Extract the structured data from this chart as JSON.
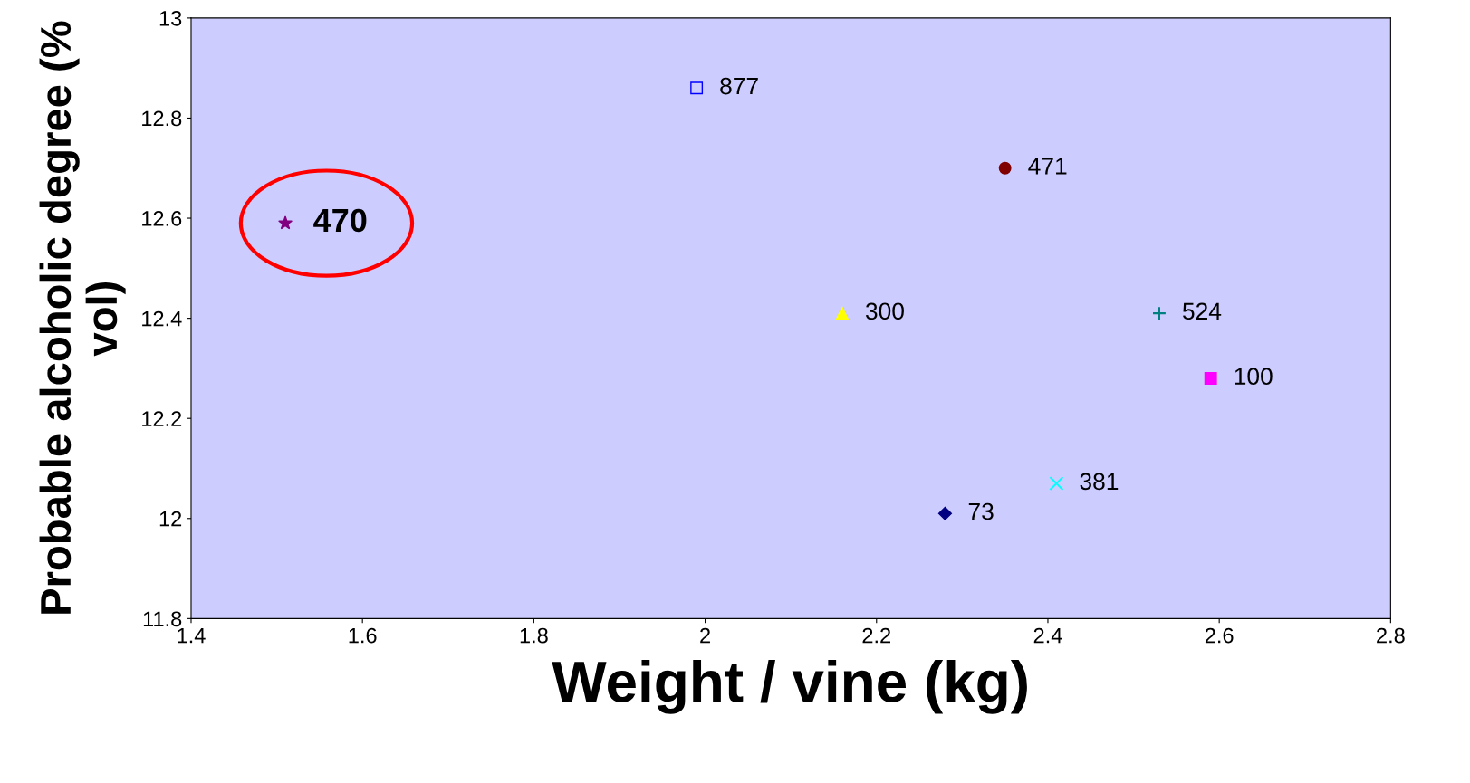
{
  "chart_data": {
    "type": "scatter",
    "xlabel": "Weight / vine (kg)",
    "ylabel": "Probable alcoholic degree (% vol)",
    "xlim": [
      1.4,
      2.8
    ],
    "xticks": [
      1.4,
      1.6,
      1.8,
      2,
      2.2,
      2.4,
      2.6,
      2.8
    ],
    "ylim": [
      11.8,
      13
    ],
    "yticks": [
      11.8,
      12,
      12.2,
      12.4,
      12.6,
      12.8,
      13
    ],
    "grid": false,
    "annotations": [
      {
        "text": "470",
        "x": 1.51,
        "y": 12.59
      }
    ],
    "series": [
      {
        "name": "877",
        "color": "#0000ff",
        "marker": "square",
        "x": [
          1.99
        ],
        "values": [
          12.86
        ]
      },
      {
        "name": "471",
        "color": "#800000",
        "marker": "circle",
        "x": [
          2.35
        ],
        "values": [
          12.7
        ]
      },
      {
        "color": "#800080",
        "marker": "star",
        "x": [
          1.51
        ],
        "values": [
          12.59
        ]
      },
      {
        "name": "300",
        "color": "#ffff00",
        "marker": "triangle",
        "x": [
          2.16
        ],
        "values": [
          12.41
        ]
      },
      {
        "name": "524",
        "color": "#008080",
        "marker": "plus",
        "x": [
          2.53
        ],
        "values": [
          12.41
        ]
      },
      {
        "name": "100",
        "color": "#ff00ff",
        "marker": "square",
        "x": [
          2.59
        ],
        "values": [
          12.28
        ]
      },
      {
        "name": "381",
        "color": "#00ffff",
        "marker": "cross",
        "x": [
          2.41
        ],
        "values": [
          12.07
        ]
      },
      {
        "name": "73",
        "color": "#000080",
        "marker": "diamond",
        "x": [
          2.28
        ],
        "values": [
          12.01
        ]
      }
    ]
  }
}
